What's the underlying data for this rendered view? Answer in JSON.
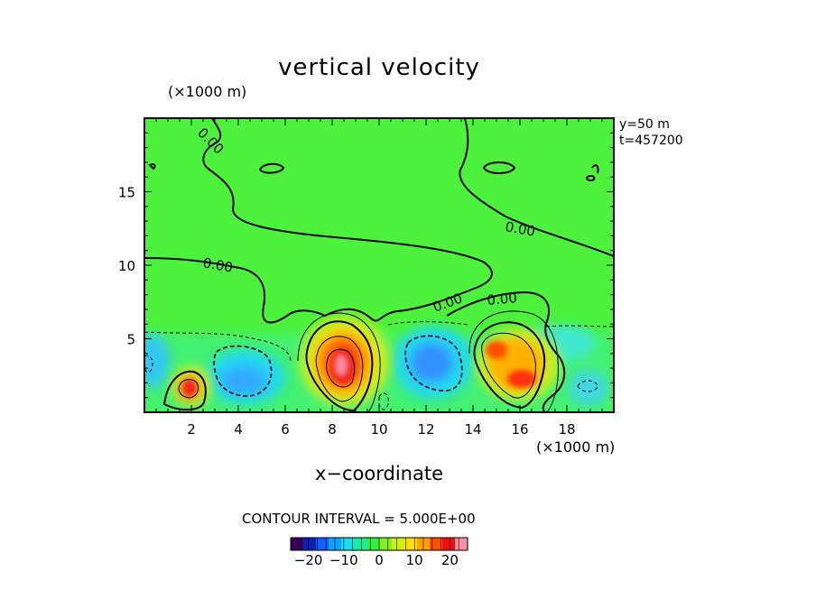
{
  "chart_data": {
    "type": "heatmap",
    "title": "vertical velocity",
    "xlabel": "x−coordinate",
    "x_unit": "(×1000 m)",
    "y_unit": "(×1000 m)",
    "annotations": [
      "y=50  m",
      "t=457200"
    ],
    "xlim": [
      0,
      20
    ],
    "ylim": [
      0,
      20
    ],
    "x_ticks": [
      2,
      4,
      6,
      8,
      10,
      12,
      14,
      16,
      18
    ],
    "y_ticks": [
      5,
      10,
      15
    ],
    "contour_interval_text": "CONTOUR INTERVAL = 5.000E+00",
    "contour_labels": [
      "0.00",
      "0.00",
      "0.00",
      "0.00",
      "0.00"
    ],
    "colorbar": {
      "range": [
        -25,
        25
      ],
      "ticks": [
        -20,
        -10,
        0,
        10,
        20
      ],
      "tick_labels": [
        "−20",
        "−10",
        "0",
        "10",
        "20"
      ],
      "colors": [
        "#3a0060",
        "#1020b0",
        "#1060ff",
        "#10a0ff",
        "#10e0f0",
        "#10f0a0",
        "#30f040",
        "#80f020",
        "#d0f010",
        "#ffe000",
        "#ffa000",
        "#ff5000",
        "#f01010",
        "#ff90a0"
      ]
    },
    "features": [
      {
        "kind": "updraft",
        "x": 2.0,
        "y": 1.8,
        "peak": 22
      },
      {
        "kind": "updraft",
        "x": 8.6,
        "y": 3.2,
        "peak": 24
      },
      {
        "kind": "updraft",
        "x": 15.6,
        "y": 3.2,
        "peak": 18
      },
      {
        "kind": "downdraft",
        "x": 4.6,
        "y": 2.1,
        "peak": -12
      },
      {
        "kind": "downdraft",
        "x": 12.4,
        "y": 3.2,
        "peak": -13
      },
      {
        "kind": "downdraft",
        "x": 0.2,
        "y": 3.3,
        "peak": -8
      },
      {
        "kind": "downdraft",
        "x": 18.8,
        "y": 1.7,
        "peak": -6
      }
    ]
  }
}
